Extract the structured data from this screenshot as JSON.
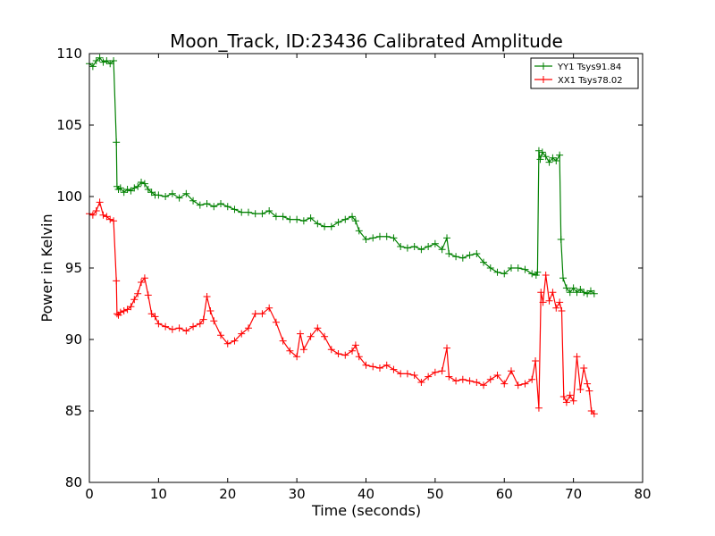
{
  "chart_data": {
    "type": "line",
    "title": "Moon_Track, ID:23436 Calibrated Amplitude",
    "xlabel": "Time (seconds)",
    "ylabel": "Power in Kelvin",
    "xlim": [
      0,
      80
    ],
    "ylim": [
      80,
      110
    ],
    "xticks": [
      "0",
      "10",
      "20",
      "30",
      "40",
      "50",
      "60",
      "70",
      "80"
    ],
    "yticks": [
      "80",
      "85",
      "90",
      "95",
      "100",
      "105",
      "110"
    ],
    "grid": false,
    "legend_position": "top-right",
    "marker": "+",
    "series": [
      {
        "name": "YY1 Tsys91.84",
        "color": "#008000",
        "x": [
          0,
          0.5,
          1,
          1.5,
          2,
          2.5,
          3,
          3.5,
          3.9,
          4.0,
          4.2,
          4.5,
          5,
          5.5,
          6,
          6.5,
          7,
          7.5,
          8,
          8.5,
          9,
          9.5,
          10,
          11,
          12,
          13,
          14,
          15,
          16,
          17,
          18,
          19,
          20,
          21,
          22,
          23,
          24,
          25,
          26,
          27,
          28,
          29,
          30,
          31,
          32,
          33,
          34,
          35,
          36,
          37,
          38,
          38.5,
          39,
          40,
          41,
          42,
          43,
          44,
          45,
          46,
          47,
          48,
          49,
          50,
          51,
          51.7,
          52,
          53,
          54,
          55,
          56,
          57,
          58,
          59,
          60,
          61,
          62,
          63,
          64,
          64.6,
          64.8,
          65,
          65.2,
          65.5,
          66,
          66.5,
          67,
          67.5,
          68,
          68.2,
          68.5,
          69,
          69.5,
          70,
          70.5,
          71,
          71.5,
          72,
          72.5,
          73
        ],
        "y": [
          109.3,
          109.1,
          109.5,
          109.7,
          109.4,
          109.5,
          109.3,
          109.5,
          103.8,
          100.7,
          100.5,
          100.6,
          100.3,
          100.5,
          100.4,
          100.6,
          100.7,
          101.0,
          100.9,
          100.5,
          100.3,
          100.1,
          100.1,
          100.0,
          100.2,
          99.9,
          100.2,
          99.7,
          99.4,
          99.5,
          99.3,
          99.5,
          99.3,
          99.1,
          98.9,
          98.9,
          98.8,
          98.8,
          99.0,
          98.6,
          98.6,
          98.4,
          98.4,
          98.3,
          98.5,
          98.1,
          97.9,
          97.9,
          98.2,
          98.4,
          98.6,
          98.3,
          97.6,
          97.0,
          97.1,
          97.2,
          97.2,
          97.1,
          96.5,
          96.4,
          96.5,
          96.3,
          96.5,
          96.7,
          96.3,
          97.1,
          96.0,
          95.8,
          95.7,
          95.9,
          96.0,
          95.4,
          95.0,
          94.7,
          94.6,
          95.0,
          95.0,
          94.9,
          94.6,
          94.5,
          94.7,
          103.2,
          102.6,
          103.1,
          102.8,
          102.4,
          102.7,
          102.5,
          102.9,
          97.0,
          94.3,
          93.6,
          93.3,
          93.6,
          93.3,
          93.5,
          93.3,
          93.2,
          93.4,
          93.2
        ]
      },
      {
        "name": "XX1 Tsys78.02",
        "color": "#ff0000",
        "x": [
          0,
          0.5,
          1,
          1.5,
          2,
          2.5,
          3,
          3.5,
          3.9,
          4.0,
          4.2,
          4.5,
          5,
          5.5,
          6,
          6.5,
          7,
          7.5,
          8,
          8.5,
          9,
          9.5,
          10,
          11,
          12,
          13,
          14,
          15,
          16,
          16.5,
          17,
          17.5,
          18,
          19,
          20,
          21,
          22,
          23,
          24,
          25,
          26,
          27,
          28,
          29,
          30,
          30.5,
          31,
          32,
          33,
          34,
          35,
          36,
          37,
          38,
          38.5,
          39,
          40,
          41,
          42,
          43,
          44,
          45,
          46,
          47,
          48,
          49,
          50,
          51,
          51.7,
          52,
          53,
          54,
          55,
          56,
          57,
          58,
          59,
          60,
          61,
          62,
          63,
          64,
          64.5,
          65,
          65.3,
          65.6,
          66,
          66.5,
          67,
          67.5,
          68,
          68.3,
          68.6,
          69,
          69.5,
          70,
          70.5,
          71,
          71.5,
          72,
          72.3,
          72.6,
          73
        ],
        "y": [
          98.8,
          98.7,
          99.0,
          99.6,
          98.7,
          98.6,
          98.4,
          98.3,
          94.1,
          91.8,
          91.7,
          91.9,
          92.0,
          92.1,
          92.3,
          92.8,
          93.2,
          94.0,
          94.3,
          93.1,
          91.8,
          91.6,
          91.1,
          90.9,
          90.7,
          90.8,
          90.6,
          90.9,
          91.1,
          91.4,
          93.0,
          92.0,
          91.3,
          90.3,
          89.7,
          89.9,
          90.4,
          90.8,
          91.8,
          91.8,
          92.2,
          91.2,
          89.9,
          89.2,
          88.8,
          90.4,
          89.3,
          90.2,
          90.8,
          90.2,
          89.3,
          89.0,
          88.9,
          89.2,
          89.6,
          88.8,
          88.2,
          88.1,
          88.0,
          88.2,
          87.9,
          87.6,
          87.6,
          87.5,
          87.0,
          87.4,
          87.7,
          87.8,
          89.4,
          87.4,
          87.1,
          87.2,
          87.1,
          87.0,
          86.8,
          87.2,
          87.5,
          86.9,
          87.8,
          86.8,
          86.9,
          87.2,
          88.5,
          85.2,
          93.3,
          92.6,
          94.5,
          92.7,
          93.3,
          92.2,
          92.6,
          92.0,
          86.0,
          85.6,
          86.1,
          85.7,
          88.8,
          86.5,
          88.0,
          86.9,
          86.4,
          85.0,
          84.8
        ]
      }
    ]
  }
}
